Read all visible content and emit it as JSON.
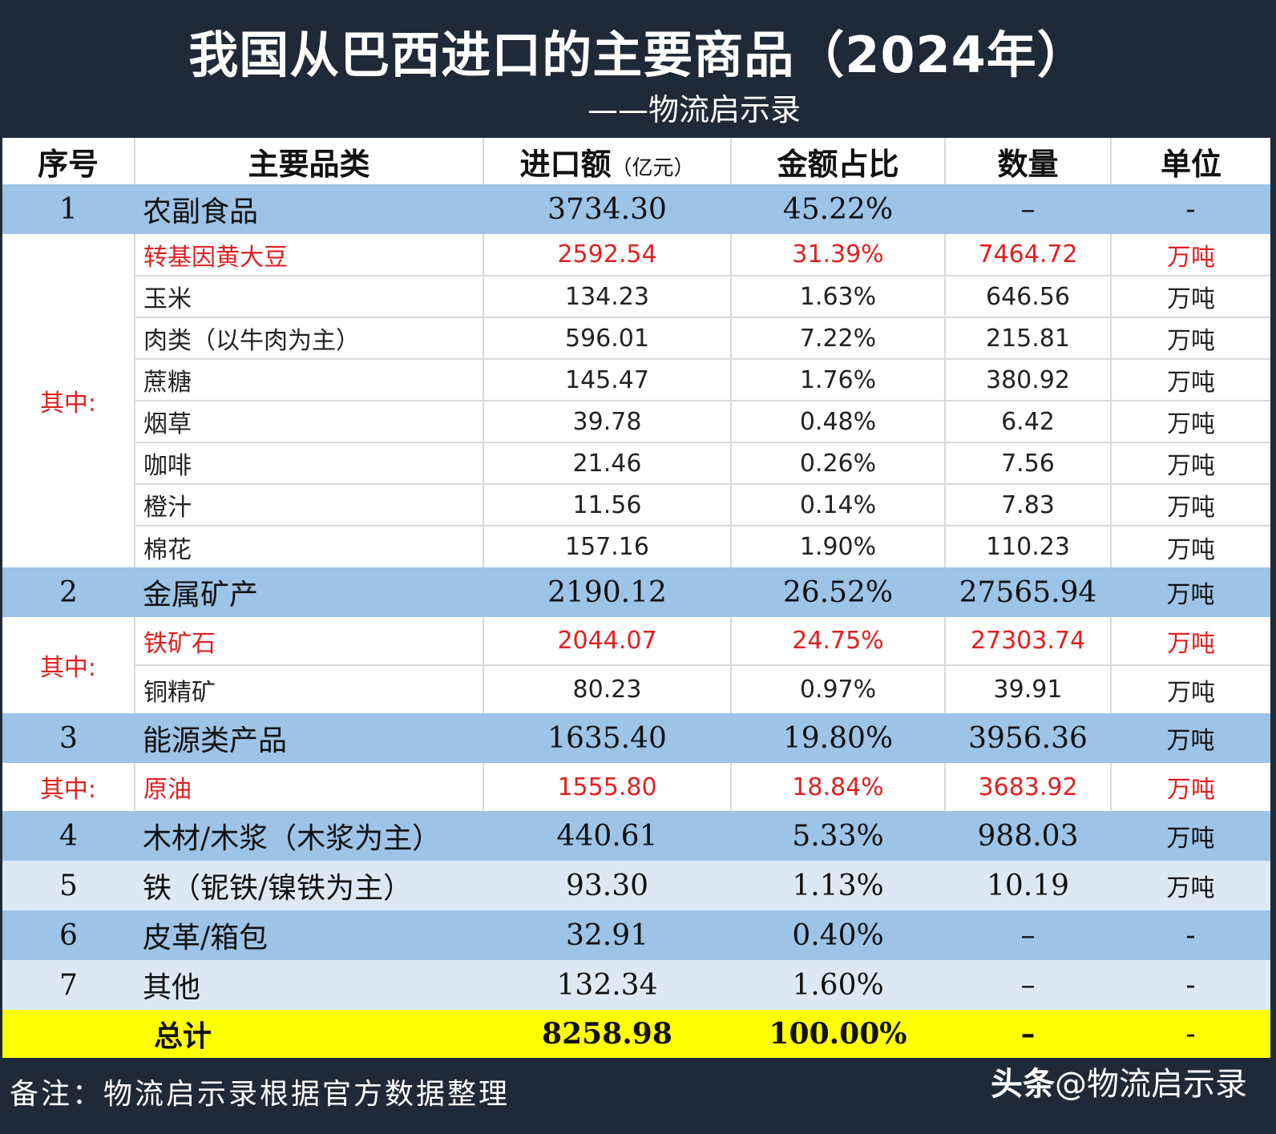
{
  "header": {
    "title": "我国从巴西进口的主要商品（2024年）",
    "subtitle": "——物流启示录"
  },
  "columns": {
    "seq": "序号",
    "category": "主要品类",
    "amount": "进口额",
    "amount_unit": "（亿元）",
    "share": "金额占比",
    "qty": "数量",
    "unit": "单位"
  },
  "qizhong_label": "其中:",
  "rows": [
    {
      "seq": "1",
      "name": "农副食品",
      "amount": "3734.30",
      "share": "45.22%",
      "qty": "–",
      "unit": "-"
    },
    {
      "name": "转基因黄大豆",
      "amount": "2592.54",
      "share": "31.39%",
      "qty": "7464.72",
      "unit": "万吨"
    },
    {
      "name": "玉米",
      "amount": "134.23",
      "share": "1.63%",
      "qty": "646.56",
      "unit": "万吨"
    },
    {
      "name": "肉类（以牛肉为主）",
      "amount": "596.01",
      "share": "7.22%",
      "qty": "215.81",
      "unit": "万吨"
    },
    {
      "name": "蔗糖",
      "amount": "145.47",
      "share": "1.76%",
      "qty": "380.92",
      "unit": "万吨"
    },
    {
      "name": "烟草",
      "amount": "39.78",
      "share": "0.48%",
      "qty": "6.42",
      "unit": "万吨"
    },
    {
      "name": "咖啡",
      "amount": "21.46",
      "share": "0.26%",
      "qty": "7.56",
      "unit": "万吨"
    },
    {
      "name": "橙汁",
      "amount": "11.56",
      "share": "0.14%",
      "qty": "7.83",
      "unit": "万吨"
    },
    {
      "name": "棉花",
      "amount": "157.16",
      "share": "1.90%",
      "qty": "110.23",
      "unit": "万吨"
    },
    {
      "seq": "2",
      "name": "金属矿产",
      "amount": "2190.12",
      "share": "26.52%",
      "qty": "27565.94",
      "unit": "万吨"
    },
    {
      "name": "铁矿石",
      "amount": "2044.07",
      "share": "24.75%",
      "qty": "27303.74",
      "unit": "万吨"
    },
    {
      "name": "铜精矿",
      "amount": "80.23",
      "share": "0.97%",
      "qty": "39.91",
      "unit": "万吨"
    },
    {
      "seq": "3",
      "name": "能源类产品",
      "amount": "1635.40",
      "share": "19.80%",
      "qty": "3956.36",
      "unit": "万吨"
    },
    {
      "name": "原油",
      "amount": "1555.80",
      "share": "18.84%",
      "qty": "3683.92",
      "unit": "万吨"
    },
    {
      "seq": "4",
      "name": "木材/木浆（木浆为主）",
      "amount": "440.61",
      "share": "5.33%",
      "qty": "988.03",
      "unit": "万吨"
    },
    {
      "seq": "5",
      "name": "铁（铌铁/镍铁为主）",
      "amount": "93.30",
      "share": "1.13%",
      "qty": "10.19",
      "unit": "万吨"
    },
    {
      "seq": "6",
      "name": "皮革/箱包",
      "amount": "32.91",
      "share": "0.40%",
      "qty": "–",
      "unit": "-"
    },
    {
      "seq": "7",
      "name": "其他",
      "amount": "132.34",
      "share": "1.60%",
      "qty": "–",
      "unit": "-"
    },
    {
      "name": "总计",
      "amount": "8258.98",
      "share": "100.00%",
      "qty": "–",
      "unit": "-"
    }
  ],
  "footer": {
    "note": "备注：物流启示录根据官方数据整理",
    "watermark_brand": "头条",
    "watermark_handle": "@物流启示录"
  },
  "colors": {
    "background": "#1f2a38",
    "category_row": "#9dc3e6",
    "light_row": "#dce9f5",
    "highlight_text": "#e02020",
    "total_row": "#ffff00"
  }
}
